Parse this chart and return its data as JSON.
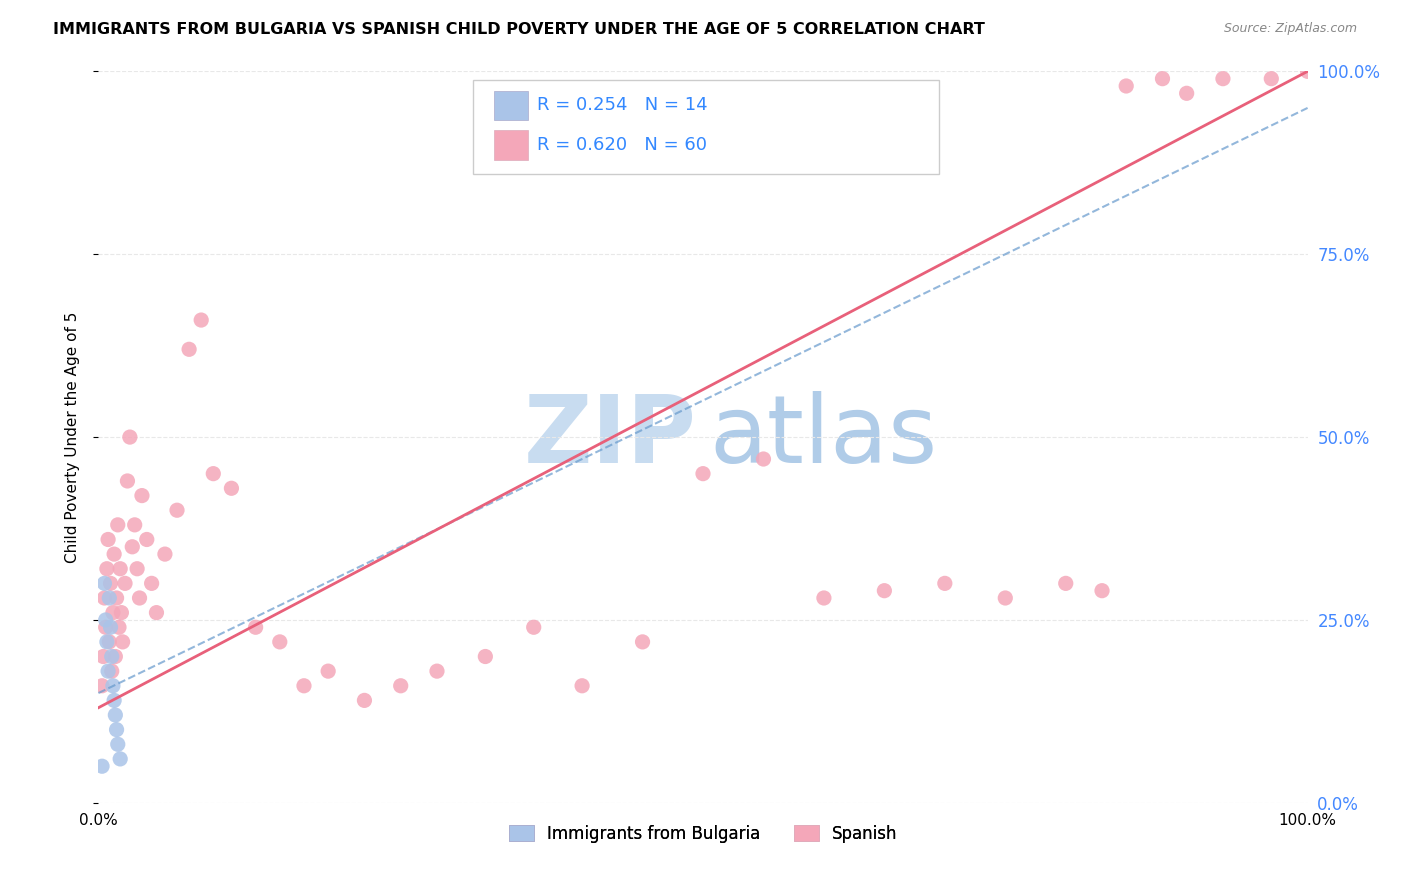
{
  "title": "IMMIGRANTS FROM BULGARIA VS SPANISH CHILD POVERTY UNDER THE AGE OF 5 CORRELATION CHART",
  "source": "Source: ZipAtlas.com",
  "ylabel": "Child Poverty Under the Age of 5",
  "xlim": [
    0,
    1
  ],
  "ylim": [
    0,
    1
  ],
  "ytick_labels_right": [
    "0.0%",
    "25.0%",
    "50.0%",
    "75.0%",
    "100.0%"
  ],
  "ytick_positions_right": [
    0.0,
    0.25,
    0.5,
    0.75,
    1.0
  ],
  "legend_label1": "Immigrants from Bulgaria",
  "legend_label2": "Spanish",
  "R_bulgaria": 0.254,
  "N_bulgaria": 14,
  "R_spanish": 0.62,
  "N_spanish": 60,
  "bulgaria_color": "#aac4e8",
  "spanish_color": "#f4a7b9",
  "trendline_bulgaria_color": "#6699cc",
  "trendline_spanish_color": "#e8607a",
  "watermark_zip_color": "#c8dcf0",
  "watermark_atlas_color": "#b0cce8",
  "bg_color": "#ffffff",
  "grid_color": "#e8e8e8",
  "bulgarian_x": [
    0.003,
    0.005,
    0.006,
    0.007,
    0.008,
    0.009,
    0.01,
    0.011,
    0.012,
    0.013,
    0.014,
    0.015,
    0.016,
    0.018
  ],
  "bulgarian_y": [
    0.05,
    0.3,
    0.25,
    0.22,
    0.18,
    0.28,
    0.24,
    0.2,
    0.16,
    0.14,
    0.12,
    0.1,
    0.08,
    0.06
  ],
  "spanish_x": [
    0.003,
    0.004,
    0.005,
    0.006,
    0.007,
    0.008,
    0.009,
    0.01,
    0.011,
    0.012,
    0.013,
    0.014,
    0.015,
    0.016,
    0.017,
    0.018,
    0.019,
    0.02,
    0.022,
    0.024,
    0.026,
    0.028,
    0.03,
    0.032,
    0.034,
    0.036,
    0.04,
    0.044,
    0.048,
    0.055,
    0.065,
    0.075,
    0.085,
    0.095,
    0.11,
    0.13,
    0.15,
    0.17,
    0.19,
    0.22,
    0.25,
    0.28,
    0.32,
    0.36,
    0.4,
    0.45,
    0.5,
    0.55,
    0.6,
    0.65,
    0.7,
    0.75,
    0.8,
    0.83,
    0.85,
    0.88,
    0.9,
    0.93,
    0.97,
    1.0
  ],
  "spanish_y": [
    0.16,
    0.2,
    0.28,
    0.24,
    0.32,
    0.36,
    0.22,
    0.3,
    0.18,
    0.26,
    0.34,
    0.2,
    0.28,
    0.38,
    0.24,
    0.32,
    0.26,
    0.22,
    0.3,
    0.44,
    0.5,
    0.35,
    0.38,
    0.32,
    0.28,
    0.42,
    0.36,
    0.3,
    0.26,
    0.34,
    0.4,
    0.62,
    0.66,
    0.45,
    0.43,
    0.24,
    0.22,
    0.16,
    0.18,
    0.14,
    0.16,
    0.18,
    0.2,
    0.24,
    0.16,
    0.22,
    0.45,
    0.47,
    0.28,
    0.29,
    0.3,
    0.28,
    0.3,
    0.29,
    0.98,
    0.99,
    0.97,
    0.99,
    0.99,
    1.0
  ],
  "trendline_spanish_x0": 0.0,
  "trendline_spanish_y0": 0.13,
  "trendline_spanish_x1": 1.0,
  "trendline_spanish_y1": 1.0,
  "trendline_bulgarian_x0": 0.0,
  "trendline_bulgarian_y0": 0.15,
  "trendline_bulgarian_x1": 1.0,
  "trendline_bulgarian_y1": 0.95
}
